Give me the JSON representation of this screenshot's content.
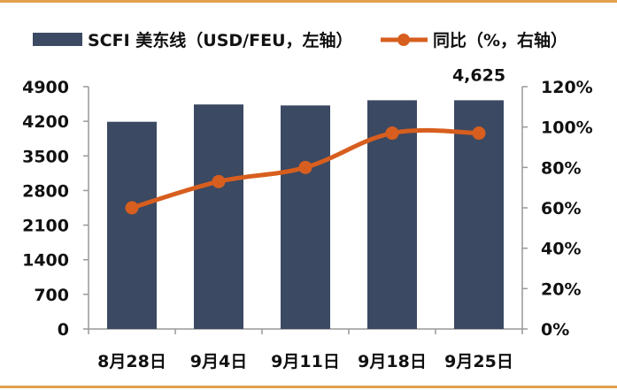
{
  "chart_data": {
    "type": "bar",
    "categories": [
      "8月28日",
      "9月4日",
      "9月11日",
      "9月18日",
      "9月25日"
    ],
    "series": [
      {
        "name": "SCFI 美东线（USD/FEU，左轴）",
        "type": "bar",
        "axis": "left",
        "values": [
          4190,
          4540,
          4520,
          4625,
          4625
        ]
      },
      {
        "name": "同比（%，右轴）",
        "type": "line",
        "axis": "right",
        "values": [
          60,
          73,
          80,
          97,
          97
        ]
      }
    ],
    "data_labels": [
      {
        "series": 0,
        "index": 4,
        "text": "4,625"
      }
    ],
    "y_left": {
      "lim": [
        0,
        4900
      ],
      "ticks": [
        0,
        700,
        1400,
        2100,
        2800,
        3500,
        4200,
        4900
      ],
      "tick_labels": [
        "0",
        "700",
        "1400",
        "2100",
        "2800",
        "3500",
        "4200",
        "4900"
      ]
    },
    "y_right": {
      "lim": [
        0,
        120
      ],
      "ticks": [
        0,
        20,
        40,
        60,
        80,
        100,
        120
      ],
      "tick_labels": [
        "0%",
        "20%",
        "40%",
        "60%",
        "80%",
        "100%",
        "120%"
      ]
    },
    "grid": false,
    "legend_position": "top",
    "colors": {
      "bar": "#3b4962",
      "line": "#d75e1e",
      "accent_rule": "#e2a14e",
      "axis": "#999999"
    }
  }
}
